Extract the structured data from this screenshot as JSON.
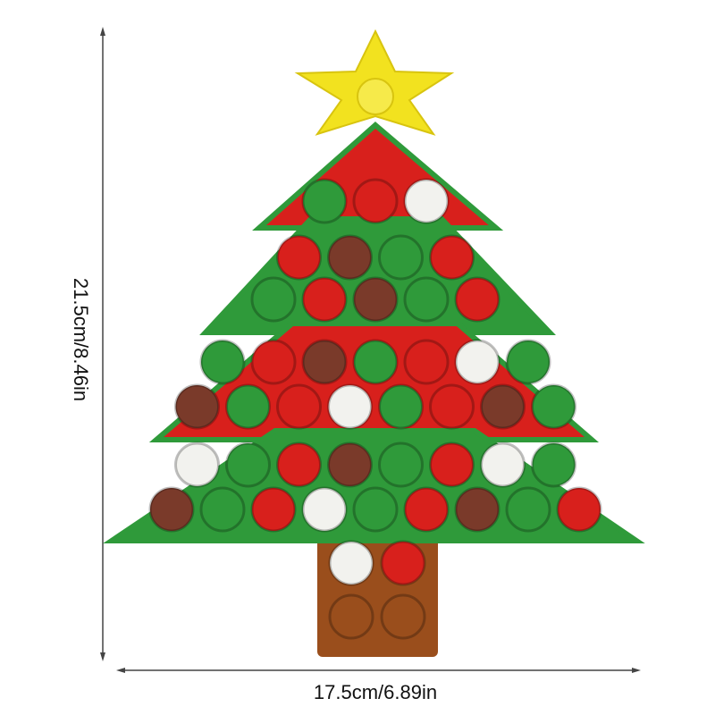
{
  "dimensions": {
    "height_label": "21.5cm/8.46in",
    "width_label": "17.5cm/6.89in"
  },
  "product": {
    "subject": "christmas-tree-pop-fidget-toy",
    "colors": {
      "red": "#d8201c",
      "green": "#2f9a3a",
      "white": "#f2f2ee",
      "star": "#f2e21f",
      "trunk": "#9a4e1c",
      "arrow": "#444444"
    }
  }
}
